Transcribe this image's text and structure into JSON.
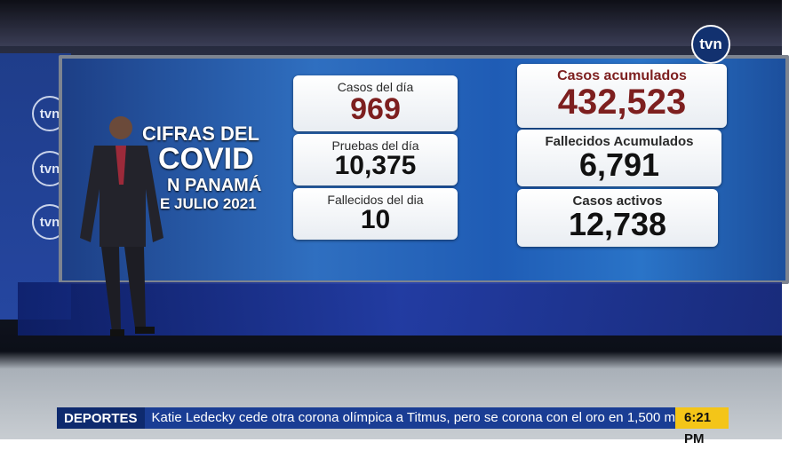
{
  "logo": "tvn",
  "side_logos": [
    "tvn",
    "tvn",
    "tvn"
  ],
  "headline": {
    "line1": "CIFRAS DEL",
    "line2": "COVID",
    "line3": "N PANAMÁ",
    "line4": "E JULIO 2021"
  },
  "cards_left": [
    {
      "label": "Casos del día",
      "value": "969"
    },
    {
      "label": "Pruebas del día",
      "value": "10,375"
    },
    {
      "label": "Fallecidos del dia",
      "value": "10"
    }
  ],
  "cards_right": [
    {
      "label": "Casos acumulados",
      "value": "432,523"
    },
    {
      "label": "Fallecidos Acumulados",
      "value": "6,791"
    },
    {
      "label": "Casos activos",
      "value": "12,738"
    }
  ],
  "ticker": {
    "section": "DEPORTES",
    "text": "Katie Ledecky cede otra corona olímpica a Titmus, pero se corona con el oro en 1,500 m",
    "time": "6:21 PM"
  }
}
